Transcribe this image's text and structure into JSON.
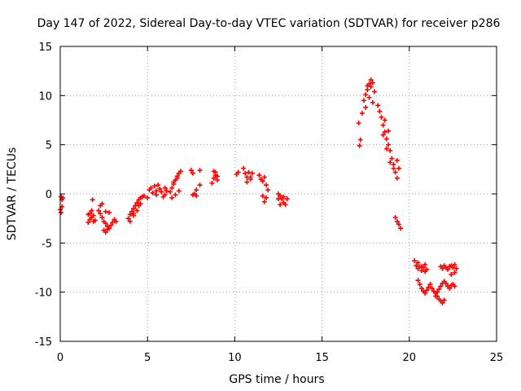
{
  "chart_data": {
    "type": "scatter",
    "title": "Day 147 of 2022, Sidereal Day-to-day VTEC variation (SDTVAR) for receiver p286",
    "xlabel": "GPS time / hours",
    "ylabel": "SDTVAR / TECUs",
    "xlim": [
      0,
      25
    ],
    "ylim": [
      -15,
      15
    ],
    "xticks": [
      0,
      5,
      10,
      15,
      20,
      25
    ],
    "yticks": [
      -15,
      -10,
      -5,
      0,
      5,
      10,
      15
    ],
    "xtick_labels": [
      "0",
      "5",
      "10",
      "15",
      "20",
      "25"
    ],
    "ytick_labels": [
      "-15",
      "-10",
      "-5",
      "0",
      "5",
      "10",
      "15"
    ],
    "grid": true,
    "marker": "plus",
    "color": "#ff0000",
    "series": [
      {
        "name": "SDTVAR",
        "x": [
          0.05,
          0.1,
          0.15,
          0.0,
          0.05,
          0.1,
          1.6,
          1.7,
          1.8,
          1.9,
          2.0,
          1.6,
          1.7,
          1.8,
          1.9,
          1.85,
          2.2,
          2.3,
          2.4,
          2.5,
          2.6,
          2.7,
          2.8,
          2.9,
          3.0,
          3.1,
          3.2,
          2.5,
          2.6,
          2.7,
          2.3,
          2.4,
          2.6,
          2.8,
          3.9,
          4.0,
          4.1,
          4.2,
          4.3,
          4.4,
          4.5,
          4.6,
          4.7,
          4.8,
          4.0,
          4.2,
          4.4,
          4.6,
          4.2,
          4.5,
          5.0,
          5.1,
          5.2,
          5.4,
          5.5,
          5.6,
          5.8,
          6.0,
          6.1,
          5.3,
          5.7,
          5.9,
          5.5,
          6.0,
          6.3,
          6.4,
          6.5,
          6.6,
          6.7,
          6.8,
          6.9,
          6.4,
          6.6,
          6.8,
          6.5,
          6.7,
          7.5,
          7.6,
          7.7,
          7.8,
          8.0,
          7.6,
          7.8,
          8.0,
          8.7,
          8.8,
          8.9,
          9.0,
          8.8,
          9.0,
          8.9,
          10.1,
          10.2,
          10.5,
          10.6,
          10.7,
          10.8,
          10.9,
          11.0,
          10.7,
          10.9,
          11.4,
          11.5,
          11.6,
          11.7,
          11.8,
          11.9,
          11.6,
          11.8,
          11.7,
          12.5,
          12.6,
          12.7,
          12.8,
          12.9,
          13.0,
          12.6,
          12.8,
          12.5,
          17.1,
          17.15,
          17.2,
          17.3,
          17.4,
          17.5,
          17.6,
          17.7,
          17.8,
          17.9,
          18.0,
          17.5,
          17.7,
          17.9,
          17.6,
          17.8,
          18.2,
          18.3,
          18.4,
          18.5,
          18.6,
          18.7,
          18.8,
          18.9,
          19.0,
          19.1,
          19.2,
          19.3,
          19.4,
          18.5,
          18.7,
          18.9,
          19.1,
          19.3,
          18.6,
          18.8,
          19.2,
          19.3,
          19.4,
          19.5,
          20.3,
          20.4,
          20.5,
          20.6,
          20.7,
          20.8,
          20.9,
          21.0,
          20.5,
          20.7,
          20.9,
          20.5,
          20.6,
          20.7,
          20.8,
          20.9,
          21.0,
          21.1,
          21.2,
          21.3,
          21.4,
          21.5,
          21.6,
          21.7,
          21.8,
          21.9,
          22.0,
          21.5,
          21.6,
          21.7,
          21.8,
          21.9,
          22.0,
          22.1,
          22.2,
          22.3,
          22.4,
          22.5,
          22.6,
          21.8,
          21.9,
          22.0,
          22.1,
          22.2,
          22.3,
          22.4,
          22.5,
          22.6,
          22.7,
          22.4,
          22.6
        ],
        "y": [
          -0.3,
          -0.6,
          -0.4,
          -1.6,
          -1.9,
          -1.3,
          -2.1,
          -2.6,
          -2.4,
          -2.2,
          -2.7,
          -2.9,
          -2.0,
          -1.7,
          -2.8,
          -0.6,
          -1.7,
          -2.0,
          -2.4,
          -2.8,
          -3.0,
          -3.3,
          -3.5,
          -3.2,
          -2.9,
          -2.6,
          -2.8,
          -3.7,
          -3.9,
          -3.6,
          -1.2,
          -1.0,
          -1.8,
          -1.9,
          -2.5,
          -2.1,
          -1.8,
          -1.5,
          -1.2,
          -0.9,
          -0.6,
          -0.4,
          -0.3,
          -0.2,
          -2.8,
          -2.2,
          -1.7,
          -1.0,
          -2.0,
          -1.2,
          -0.4,
          0.4,
          0.6,
          0.8,
          0.3,
          0.9,
          0.2,
          -0.1,
          0.3,
          0.1,
          0.5,
          -0.3,
          -0.1,
          0.6,
          0.2,
          0.6,
          1.0,
          1.4,
          1.8,
          2.1,
          2.3,
          -0.4,
          -0.1,
          0.3,
          1.2,
          1.6,
          2.4,
          2.1,
          0.0,
          -0.2,
          2.4,
          -0.1,
          0.4,
          0.9,
          1.1,
          1.6,
          2.2,
          1.8,
          2.3,
          1.4,
          1.9,
          2.0,
          2.2,
          2.6,
          2.1,
          1.7,
          2.2,
          1.7,
          2.1,
          1.2,
          1.5,
          1.9,
          1.5,
          1.3,
          1.7,
          0.9,
          0.4,
          -0.2,
          -0.4,
          -0.8,
          0.0,
          -0.2,
          -0.5,
          -0.9,
          -1.1,
          -0.5,
          -1.1,
          -0.3,
          -0.5,
          7.2,
          4.9,
          5.5,
          8.2,
          9.5,
          10.1,
          10.6,
          11.2,
          11.6,
          11.3,
          10.4,
          8.8,
          9.8,
          9.3,
          11.0,
          10.9,
          9.0,
          8.4,
          7.8,
          7.0,
          6.3,
          5.6,
          5.0,
          4.4,
          3.6,
          3.0,
          2.2,
          1.6,
          2.6,
          6.0,
          4.6,
          3.2,
          2.6,
          3.4,
          7.5,
          6.4,
          -2.4,
          -2.8,
          -3.1,
          -3.5,
          -6.8,
          -7.3,
          -7.6,
          -7.4,
          -7.8,
          -7.5,
          -7.9,
          -7.7,
          -7.0,
          -7.4,
          -7.2,
          -8.8,
          -9.2,
          -9.6,
          -9.9,
          -10.1,
          -9.8,
          -9.5,
          -9.2,
          -9.6,
          -9.9,
          -10.1,
          -10.4,
          -10.7,
          -10.9,
          -11.1,
          -10.8,
          -10.4,
          -10.0,
          -9.7,
          -9.4,
          -9.1,
          -8.9,
          -9.1,
          -9.4,
          -9.6,
          -9.3,
          -9.2,
          -9.4,
          -7.4,
          -7.6,
          -7.3,
          -7.5,
          -7.7,
          -7.4,
          -7.3,
          -7.5,
          -7.2,
          -7.6,
          -8.2,
          -8.0
        ]
      }
    ]
  }
}
